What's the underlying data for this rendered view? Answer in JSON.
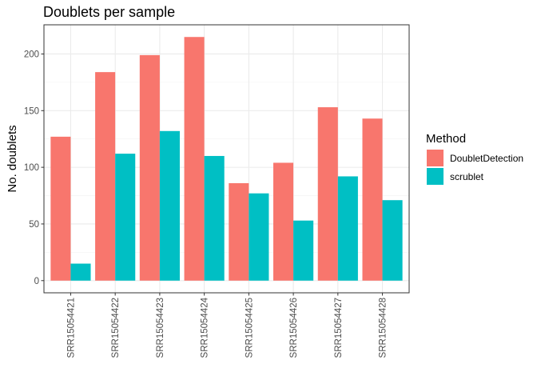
{
  "chart_data": {
    "type": "bar",
    "title": "Doublets per sample",
    "xlabel": "",
    "ylabel": "No. doublets",
    "categories": [
      "SRR15054421",
      "SRR15054422",
      "SRR15054423",
      "SRR15054424",
      "SRR15054425",
      "SRR15054426",
      "SRR15054427",
      "SRR15054428"
    ],
    "series": [
      {
        "name": "DoubletDetection",
        "color": "#F8766D",
        "values": [
          127,
          184,
          199,
          215,
          86,
          104,
          153,
          143
        ]
      },
      {
        "name": "scrublet",
        "color": "#00BFC4",
        "values": [
          15,
          112,
          132,
          110,
          77,
          53,
          92,
          71
        ]
      }
    ],
    "ylim": [
      -10.75,
      225.75
    ],
    "yticks": [
      0,
      50,
      100,
      150,
      200
    ],
    "grid": true,
    "legend": {
      "title": "Method",
      "position": "right"
    }
  }
}
